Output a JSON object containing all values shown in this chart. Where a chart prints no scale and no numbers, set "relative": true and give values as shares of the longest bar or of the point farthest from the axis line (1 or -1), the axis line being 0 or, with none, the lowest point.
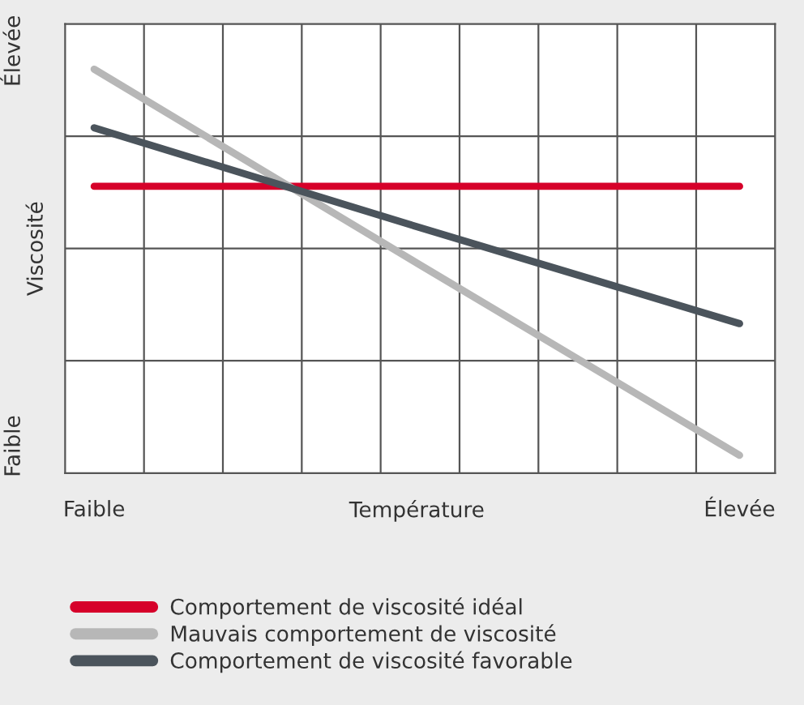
{
  "chart_data": {
    "type": "line",
    "relative": true,
    "categories": [
      "Faible",
      "Température",
      "Élevée"
    ],
    "ylabel": "Viscosité",
    "annotations": [
      "Faible",
      "Élevée"
    ],
    "series": [
      {
        "name": "Comportement de viscosité idéal",
        "color": "#d6002a",
        "values": [
          0.71,
          0.71,
          0.71
        ]
      },
      {
        "name": "Mauvais comportement de viscosité",
        "color": "#b7b7b7",
        "values": [
          1,
          0.52,
          0.044
        ]
      },
      {
        "name": "Comportement de viscosité favorable",
        "color": "#4b545c",
        "values": [
          0.855,
          0.61,
          0.37
        ]
      }
    ],
    "grid": true,
    "legend": "bottom",
    "marker": "none",
    "line_style": "solid"
  }
}
